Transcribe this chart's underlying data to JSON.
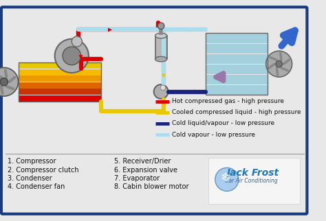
{
  "bg_color": "#e8e8e8",
  "border_color": "#1a3a7e",
  "legend_items": [
    {
      "label": "Hot compressed gas - high pressure",
      "color": "#dd0000",
      "lw": 3.5
    },
    {
      "label": "Cooled compressed liquid - high pressure",
      "color": "#e8c800",
      "lw": 3.5
    },
    {
      "label": "Cold liquid/vapour - low pressure",
      "color": "#1a237e",
      "lw": 3.5
    },
    {
      "label": "Cold vapour - low pressure",
      "color": "#aaddee",
      "lw": 3.5
    }
  ],
  "components_col1": [
    "1. Compressor",
    "2. Compressor clutch",
    "3. Condenser",
    "4. Condenser fan"
  ],
  "components_col2": [
    "5. Receiver/Drier",
    "6. Expansion valve",
    "7. Evaporator",
    "8. Cabin blower motor"
  ],
  "font_size_legend": 6.5,
  "font_size_components": 7.0,
  "red": "#dd0000",
  "yellow": "#e8c800",
  "dblue": "#1a237e",
  "lblue": "#aaddee",
  "pipe_lw": 4.5
}
